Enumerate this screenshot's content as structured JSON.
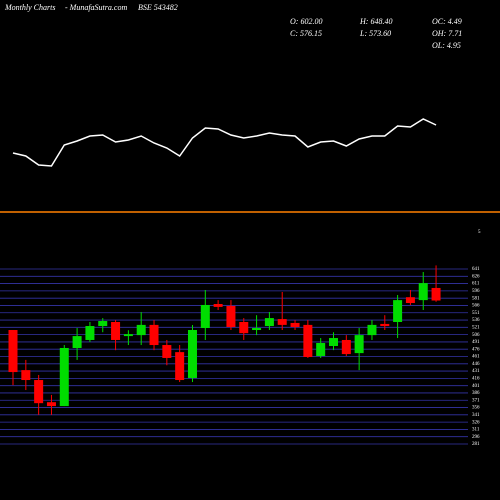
{
  "header": {
    "left": "Monthly Charts",
    "site": "- MunafaSutra.com",
    "symbol": "BSE 543482",
    "o": "O: 602.00",
    "c": "C: 576.15",
    "h": "H: 648.40",
    "l": "L: 573.60",
    "oc": "OC: 4.49",
    "oh": "OH: 7.71",
    "ol": "OL: 4.95"
  },
  "chart_data": [
    {
      "type": "line",
      "color": "#ffffff",
      "ylim": [
        0,
        60
      ],
      "values": [
        22,
        19,
        10,
        9,
        30,
        34,
        39,
        40,
        33,
        35,
        39,
        32,
        27,
        19,
        37,
        47,
        46,
        40,
        37,
        39,
        42,
        40,
        39,
        28,
        33,
        34,
        29,
        36,
        39,
        39,
        49,
        48,
        56,
        50
      ],
      "annotation": "5"
    },
    {
      "type": "candlestick",
      "up_color": "#00dd00",
      "down_color": "#ff0000",
      "grid_color": "#3434a8",
      "ylim": [
        281,
        641
      ],
      "yticks": [
        281,
        296,
        311,
        326,
        341,
        356,
        371,
        386,
        401,
        416,
        431,
        446,
        461,
        476,
        491,
        506,
        521,
        536,
        551,
        566,
        581,
        596,
        611,
        626,
        641
      ],
      "open": [
        515.5,
        433,
        412.6,
        367,
        359,
        478.5,
        495,
        523.7,
        532,
        503,
        505,
        526,
        484.6,
        470,
        416.8,
        519.6,
        569,
        565,
        532,
        515.5,
        523.7,
        538,
        530,
        526,
        462,
        482.6,
        495,
        468,
        505,
        528,
        532,
        583,
        577,
        602
      ],
      "high": [
        515.5,
        454,
        423,
        382,
        484.6,
        519.6,
        532,
        540,
        536,
        515,
        552.5,
        536,
        495,
        484.6,
        525.8,
        597.8,
        577,
        577,
        540,
        546,
        552.5,
        593.7,
        536,
        536,
        499,
        511,
        505,
        519.6,
        536,
        546,
        587.5,
        597.8,
        634.8,
        648.4
      ],
      "low": [
        402,
        392,
        341,
        341,
        359,
        454,
        490.8,
        511,
        474,
        484.6,
        484.6,
        474,
        443,
        408.5,
        408.5,
        495,
        556.6,
        515.5,
        495,
        505,
        515.5,
        515.5,
        515.5,
        458,
        458,
        474,
        462,
        433,
        495,
        515.5,
        499,
        567,
        556.6,
        573.6
      ],
      "close": [
        429,
        412.6,
        365,
        359,
        478.5,
        503,
        523.7,
        534,
        495,
        507,
        526,
        484.6,
        458,
        412.6,
        515.5,
        567,
        563,
        521.7,
        509,
        519.6,
        540,
        526,
        521.7,
        460,
        488.8,
        499,
        466,
        505,
        526,
        523.7,
        577,
        571,
        612,
        576.15
      ]
    }
  ]
}
